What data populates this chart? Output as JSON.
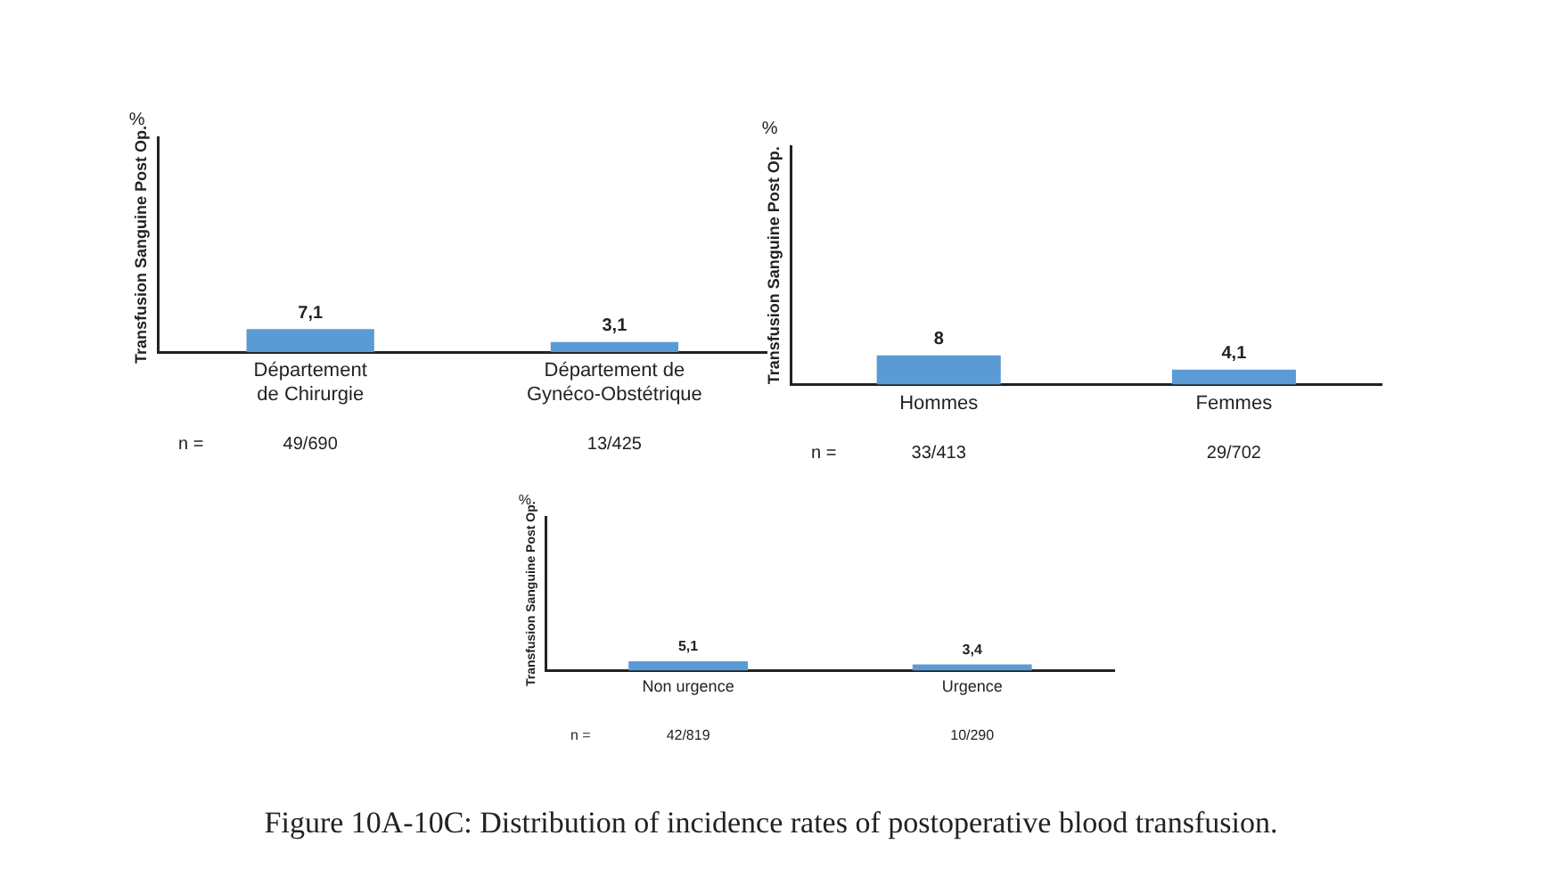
{
  "chart_data": [
    {
      "type": "bar",
      "ylabel": "Transfusion Sanguine Post Op.",
      "categories": [
        "Département\nde Chirurgie",
        "Département de\nGynéco-Obstétrique"
      ],
      "values": [
        7.1,
        3.1
      ],
      "value_labels": [
        "7,1",
        "3,1"
      ],
      "color": "#5b9bd5",
      "ylim": [
        0,
        66
      ],
      "tick_labels": "x",
      "grid": false,
      "legend": false,
      "annotations": [
        "%",
        "n =",
        "49/690",
        "13/425"
      ]
    },
    {
      "type": "bar",
      "ylabel": "Transfusion Sanguine Post Op.",
      "categories": [
        "Hommes",
        "Femmes"
      ],
      "values": [
        8,
        4.1
      ],
      "value_labels": [
        "8",
        "4,1"
      ],
      "color": "#5b9bd5",
      "ylim": [
        0,
        65
      ],
      "tick_labels": "x",
      "grid": false,
      "legend": false,
      "annotations": [
        "%",
        "n =",
        "33/413",
        "29/702"
      ]
    },
    {
      "type": "bar",
      "ylabel": "Transfusion Sanguine Post Op.",
      "categories": [
        "Non urgence",
        "Urgence"
      ],
      "values": [
        5.1,
        3.4
      ],
      "value_labels": [
        "5,1",
        "3,4"
      ],
      "color": "#5b9bd5",
      "ylim": [
        0,
        85
      ],
      "tick_labels": "x",
      "grid": false,
      "legend": false,
      "annotations": [
        "%",
        "n =",
        "42/819",
        "10/290",
        "Figure 10A-10C: Distribution of incidence rates of postoperative blood transfusion."
      ]
    }
  ]
}
